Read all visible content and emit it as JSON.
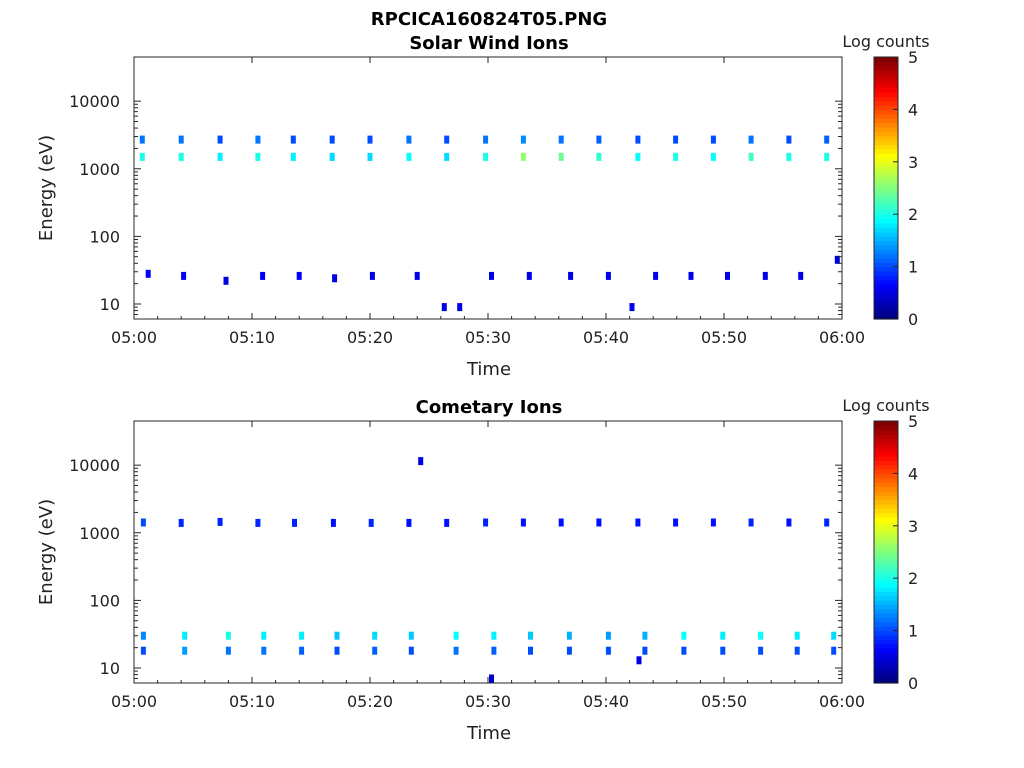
{
  "figure_title": "RPCICA160824T05.PNG",
  "chart_data": [
    {
      "type": "heatmap",
      "title": "Solar Wind Ions",
      "xlabel": "Time",
      "ylabel": "Energy (eV)",
      "yscale": "log",
      "ylim": [
        6,
        45000
      ],
      "xlim_min": [
        0,
        60
      ],
      "xticks_min": [
        0,
        10,
        20,
        30,
        40,
        50,
        60
      ],
      "xtick_labels": [
        "05:00",
        "05:10",
        "05:20",
        "05:30",
        "05:40",
        "05:50",
        "06:00"
      ],
      "yticks": [
        10,
        100,
        1000,
        10000
      ],
      "ytick_labels": [
        "10",
        "100",
        "1000",
        "10000"
      ],
      "colorbar": {
        "label": "Log counts",
        "range": [
          0,
          5
        ],
        "ticks": [
          "0",
          "1",
          "2",
          "3",
          "4",
          "5"
        ]
      },
      "cells": [
        [
          0.7,
          1500,
          2.0
        ],
        [
          0.7,
          2700,
          1.2
        ],
        [
          4.0,
          1500,
          2.0
        ],
        [
          4.0,
          2700,
          1.2
        ],
        [
          7.3,
          1500,
          1.8
        ],
        [
          7.3,
          2700,
          1.0
        ],
        [
          10.5,
          1500,
          2.0
        ],
        [
          10.5,
          2700,
          1.2
        ],
        [
          13.5,
          1500,
          1.8
        ],
        [
          13.5,
          2700,
          1.0
        ],
        [
          16.8,
          1500,
          1.7
        ],
        [
          16.8,
          2700,
          1.0
        ],
        [
          20.0,
          1500,
          1.7
        ],
        [
          20.0,
          2700,
          1.0
        ],
        [
          23.3,
          1500,
          1.9
        ],
        [
          23.3,
          2700,
          1.2
        ],
        [
          26.5,
          1500,
          1.7
        ],
        [
          26.5,
          2700,
          1.0
        ],
        [
          29.8,
          1500,
          2.0
        ],
        [
          29.8,
          2700,
          1.2
        ],
        [
          33.0,
          1500,
          2.6
        ],
        [
          33.0,
          2700,
          1.3
        ],
        [
          36.2,
          1500,
          2.4
        ],
        [
          36.2,
          2700,
          1.2
        ],
        [
          39.4,
          1500,
          2.1
        ],
        [
          39.4,
          2700,
          1.1
        ],
        [
          42.7,
          1500,
          1.9
        ],
        [
          42.7,
          2700,
          1.0
        ],
        [
          45.9,
          1500,
          2.0
        ],
        [
          45.9,
          2700,
          1.0
        ],
        [
          49.1,
          1500,
          1.9
        ],
        [
          49.1,
          2700,
          1.0
        ],
        [
          52.3,
          1500,
          2.2
        ],
        [
          52.3,
          2700,
          1.2
        ],
        [
          55.5,
          1500,
          2.0
        ],
        [
          55.5,
          2700,
          1.0
        ],
        [
          58.7,
          1500,
          2.0
        ],
        [
          58.7,
          2700,
          1.1
        ],
        [
          1.2,
          28,
          0.6
        ],
        [
          4.2,
          26,
          0.6
        ],
        [
          7.8,
          22,
          0.5
        ],
        [
          10.9,
          26,
          0.6
        ],
        [
          14.0,
          26,
          0.6
        ],
        [
          17.0,
          24,
          0.5
        ],
        [
          20.2,
          26,
          0.5
        ],
        [
          24.0,
          26,
          0.5
        ],
        [
          26.3,
          9,
          0.5
        ],
        [
          27.6,
          9,
          0.5
        ],
        [
          30.3,
          26,
          0.5
        ],
        [
          33.5,
          26,
          0.5
        ],
        [
          37.0,
          26,
          0.5
        ],
        [
          40.2,
          26,
          0.5
        ],
        [
          42.2,
          9,
          0.5
        ],
        [
          44.2,
          26,
          0.5
        ],
        [
          47.2,
          26,
          0.5
        ],
        [
          50.3,
          26,
          0.5
        ],
        [
          53.5,
          26,
          0.5
        ],
        [
          56.5,
          26,
          0.5
        ],
        [
          59.6,
          45,
          0.5
        ]
      ]
    },
    {
      "type": "heatmap",
      "title": "Cometary Ions",
      "xlabel": "Time",
      "ylabel": "Energy (eV)",
      "yscale": "log",
      "ylim": [
        6,
        45000
      ],
      "xlim_min": [
        0,
        60
      ],
      "xticks_min": [
        0,
        10,
        20,
        30,
        40,
        50,
        60
      ],
      "xtick_labels": [
        "05:00",
        "05:10",
        "05:20",
        "05:30",
        "05:40",
        "05:50",
        "06:00"
      ],
      "yticks": [
        10,
        100,
        1000,
        10000
      ],
      "ytick_labels": [
        "10",
        "100",
        "1000",
        "10000"
      ],
      "colorbar": {
        "label": "Log counts",
        "range": [
          0,
          5
        ],
        "ticks": [
          "0",
          "1",
          "2",
          "3",
          "4",
          "5"
        ]
      },
      "cells": [
        [
          0.8,
          30,
          1.3
        ],
        [
          0.8,
          18,
          1.0
        ],
        [
          4.3,
          30,
          1.8
        ],
        [
          4.3,
          18,
          1.4
        ],
        [
          8.0,
          30,
          2.0
        ],
        [
          8.0,
          18,
          1.2
        ],
        [
          11.0,
          30,
          1.8
        ],
        [
          11.0,
          18,
          1.2
        ],
        [
          14.2,
          30,
          1.8
        ],
        [
          14.2,
          18,
          1.1
        ],
        [
          17.2,
          30,
          1.6
        ],
        [
          17.2,
          18,
          1.0
        ],
        [
          20.4,
          30,
          1.7
        ],
        [
          20.4,
          18,
          1.1
        ],
        [
          23.5,
          30,
          1.6
        ],
        [
          23.5,
          18,
          1.0
        ],
        [
          27.3,
          30,
          1.9
        ],
        [
          27.3,
          18,
          1.2
        ],
        [
          30.5,
          30,
          1.8
        ],
        [
          30.5,
          18,
          1.1
        ],
        [
          33.6,
          30,
          1.6
        ],
        [
          33.6,
          18,
          1.0
        ],
        [
          36.9,
          30,
          1.5
        ],
        [
          36.9,
          18,
          1.0
        ],
        [
          40.2,
          30,
          1.4
        ],
        [
          40.2,
          18,
          1.0
        ],
        [
          43.3,
          30,
          1.5
        ],
        [
          43.3,
          18,
          1.0
        ],
        [
          46.6,
          30,
          1.9
        ],
        [
          46.6,
          18,
          1.0
        ],
        [
          49.9,
          30,
          1.8
        ],
        [
          49.9,
          18,
          1.0
        ],
        [
          53.1,
          30,
          1.9
        ],
        [
          53.1,
          18,
          1.0
        ],
        [
          56.2,
          30,
          1.8
        ],
        [
          56.2,
          18,
          1.0
        ],
        [
          59.3,
          30,
          1.7
        ],
        [
          59.3,
          18,
          1.0
        ],
        [
          0.8,
          1420,
          1.0
        ],
        [
          4.0,
          1400,
          0.8
        ],
        [
          7.3,
          1450,
          0.8
        ],
        [
          10.5,
          1400,
          0.8
        ],
        [
          13.6,
          1400,
          0.8
        ],
        [
          16.9,
          1400,
          0.7
        ],
        [
          20.1,
          1400,
          0.8
        ],
        [
          23.3,
          1400,
          0.7
        ],
        [
          26.5,
          1400,
          0.7
        ],
        [
          29.8,
          1420,
          0.8
        ],
        [
          33.0,
          1420,
          0.7
        ],
        [
          36.2,
          1420,
          0.7
        ],
        [
          39.4,
          1420,
          0.7
        ],
        [
          42.7,
          1420,
          0.7
        ],
        [
          45.9,
          1420,
          0.7
        ],
        [
          49.1,
          1420,
          0.7
        ],
        [
          52.3,
          1420,
          0.8
        ],
        [
          55.5,
          1420,
          0.7
        ],
        [
          58.7,
          1420,
          0.8
        ],
        [
          24.3,
          11500,
          0.5
        ],
        [
          42.8,
          13,
          0.5
        ],
        [
          30.3,
          7,
          0.4
        ]
      ]
    }
  ]
}
